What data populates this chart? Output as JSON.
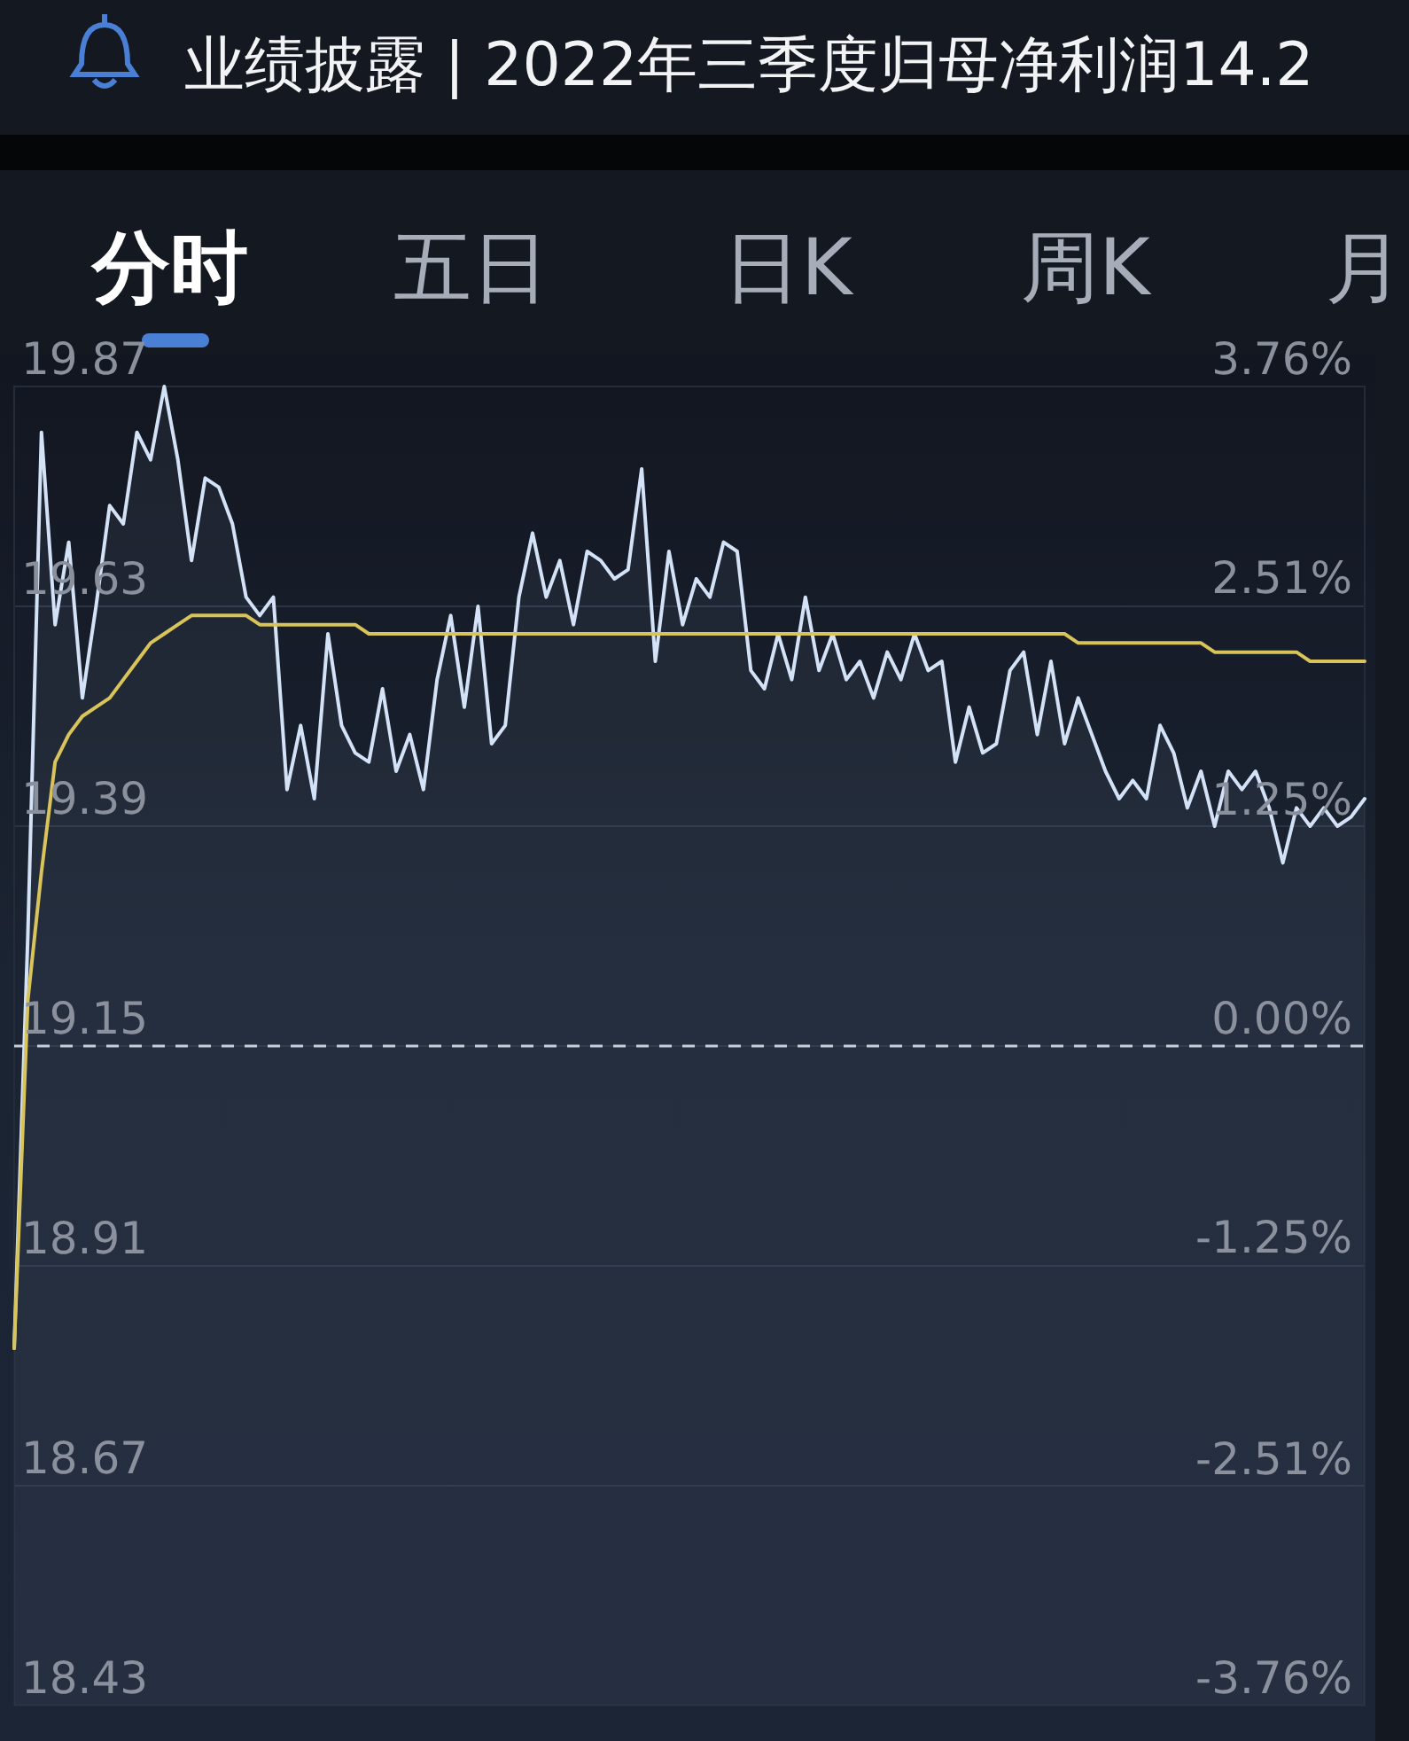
{
  "chart_data": {
    "type": "line",
    "title": "业绩披露 | 2022年三季度归母净利润14.2",
    "annotations": [
      "分时",
      "五日",
      "日K",
      "周K",
      "月"
    ],
    "categories": [
      null,
      null,
      null,
      null,
      null,
      null,
      null,
      null,
      null,
      null,
      null,
      null,
      null,
      null,
      null,
      null,
      null,
      null,
      null,
      null,
      null,
      null,
      null,
      null,
      null,
      null,
      null,
      null,
      null,
      null,
      null,
      null,
      null,
      null,
      null,
      null,
      null,
      null,
      null,
      null,
      null,
      null,
      null,
      null,
      null,
      null,
      null,
      null,
      null,
      null,
      null,
      null,
      null,
      null,
      null,
      null,
      null,
      null,
      null,
      null,
      null,
      null,
      null,
      null,
      null,
      null,
      null,
      null,
      null,
      null,
      null,
      null,
      null,
      null,
      null,
      null,
      null,
      null,
      null,
      null,
      null,
      null,
      null,
      null,
      null,
      null,
      null,
      null,
      null,
      null,
      null,
      null,
      null,
      null,
      null,
      null,
      null,
      null,
      null,
      null
    ],
    "series": [
      {
        "type": "area",
        "color": "#d3e2f7",
        "values": [
          18.82,
          19.27,
          19.82,
          19.61,
          19.7,
          19.53,
          19.63,
          19.74,
          19.72,
          19.82,
          19.79,
          19.87,
          19.79,
          19.68,
          19.77,
          19.76,
          19.72,
          19.64,
          19.62,
          19.64,
          19.43,
          19.5,
          19.42,
          19.6,
          19.5,
          19.47,
          19.46,
          19.54,
          19.45,
          19.49,
          19.43,
          19.55,
          19.62,
          19.52,
          19.63,
          19.48,
          19.5,
          19.64,
          19.71,
          19.64,
          19.68,
          19.61,
          19.69,
          19.68,
          19.66,
          19.67,
          19.78,
          19.57,
          19.69,
          19.61,
          19.66,
          19.64,
          19.7,
          19.69,
          19.56,
          19.54,
          19.6,
          19.55,
          19.64,
          19.56,
          19.6,
          19.55,
          19.57,
          19.53,
          19.58,
          19.55,
          19.6,
          19.56,
          19.57,
          19.46,
          19.52,
          19.47,
          19.48,
          19.56,
          19.58,
          19.49,
          19.57,
          19.48,
          19.53,
          19.49,
          19.45,
          19.42,
          19.44,
          19.42,
          19.5,
          19.47,
          19.41,
          19.45,
          19.39,
          19.45,
          19.43,
          19.45,
          19.41,
          19.35,
          19.41,
          19.39,
          19.41,
          19.39,
          19.4,
          19.42
        ]
      },
      {
        "type": "line",
        "color": "#d8c45a",
        "values": [
          18.82,
          19.2,
          19.34,
          19.46,
          19.49,
          19.51,
          19.52,
          19.53,
          19.55,
          19.57,
          19.59,
          19.6,
          19.61,
          19.62,
          19.62,
          19.62,
          19.62,
          19.62,
          19.61,
          19.61,
          19.61,
          19.61,
          19.61,
          19.61,
          19.61,
          19.61,
          19.6,
          19.6,
          19.6,
          19.6,
          19.6,
          19.6,
          19.6,
          19.6,
          19.6,
          19.6,
          19.6,
          19.6,
          19.6,
          19.6,
          19.6,
          19.6,
          19.6,
          19.6,
          19.6,
          19.6,
          19.6,
          19.6,
          19.6,
          19.6,
          19.6,
          19.6,
          19.6,
          19.6,
          19.6,
          19.6,
          19.6,
          19.6,
          19.6,
          19.6,
          19.6,
          19.6,
          19.6,
          19.6,
          19.6,
          19.6,
          19.6,
          19.6,
          19.6,
          19.6,
          19.6,
          19.6,
          19.6,
          19.6,
          19.6,
          19.6,
          19.6,
          19.6,
          19.59,
          19.59,
          19.59,
          19.59,
          19.59,
          19.59,
          19.59,
          19.59,
          19.59,
          19.59,
          19.58,
          19.58,
          19.58,
          19.58,
          19.58,
          19.58,
          19.58,
          19.57,
          19.57,
          19.57,
          19.57,
          19.57
        ]
      }
    ],
    "ylim": [
      18.43,
      19.87
    ],
    "yticks": [
      19.87,
      19.63,
      19.39,
      19.15,
      18.91,
      18.67,
      18.43
    ],
    "y2lim": [
      -3.76,
      3.76
    ],
    "y2ticks": [
      {
        "value": 3.76,
        "label": "3.76%"
      },
      {
        "value": 2.51,
        "label": "2.51%"
      },
      {
        "value": 1.25,
        "label": "1.25%"
      },
      {
        "value": 0,
        "label": "0.00%"
      },
      {
        "value": -1.25,
        "label": "-1.25%"
      },
      {
        "value": -2.51,
        "label": "-2.51%"
      },
      {
        "value": -3.76,
        "label": "-3.76%"
      }
    ],
    "ref_lines": [
      {
        "axis": "y",
        "value": 19.15,
        "color": "#c8ced8",
        "line_style": "dashed"
      }
    ],
    "grid": "y"
  }
}
